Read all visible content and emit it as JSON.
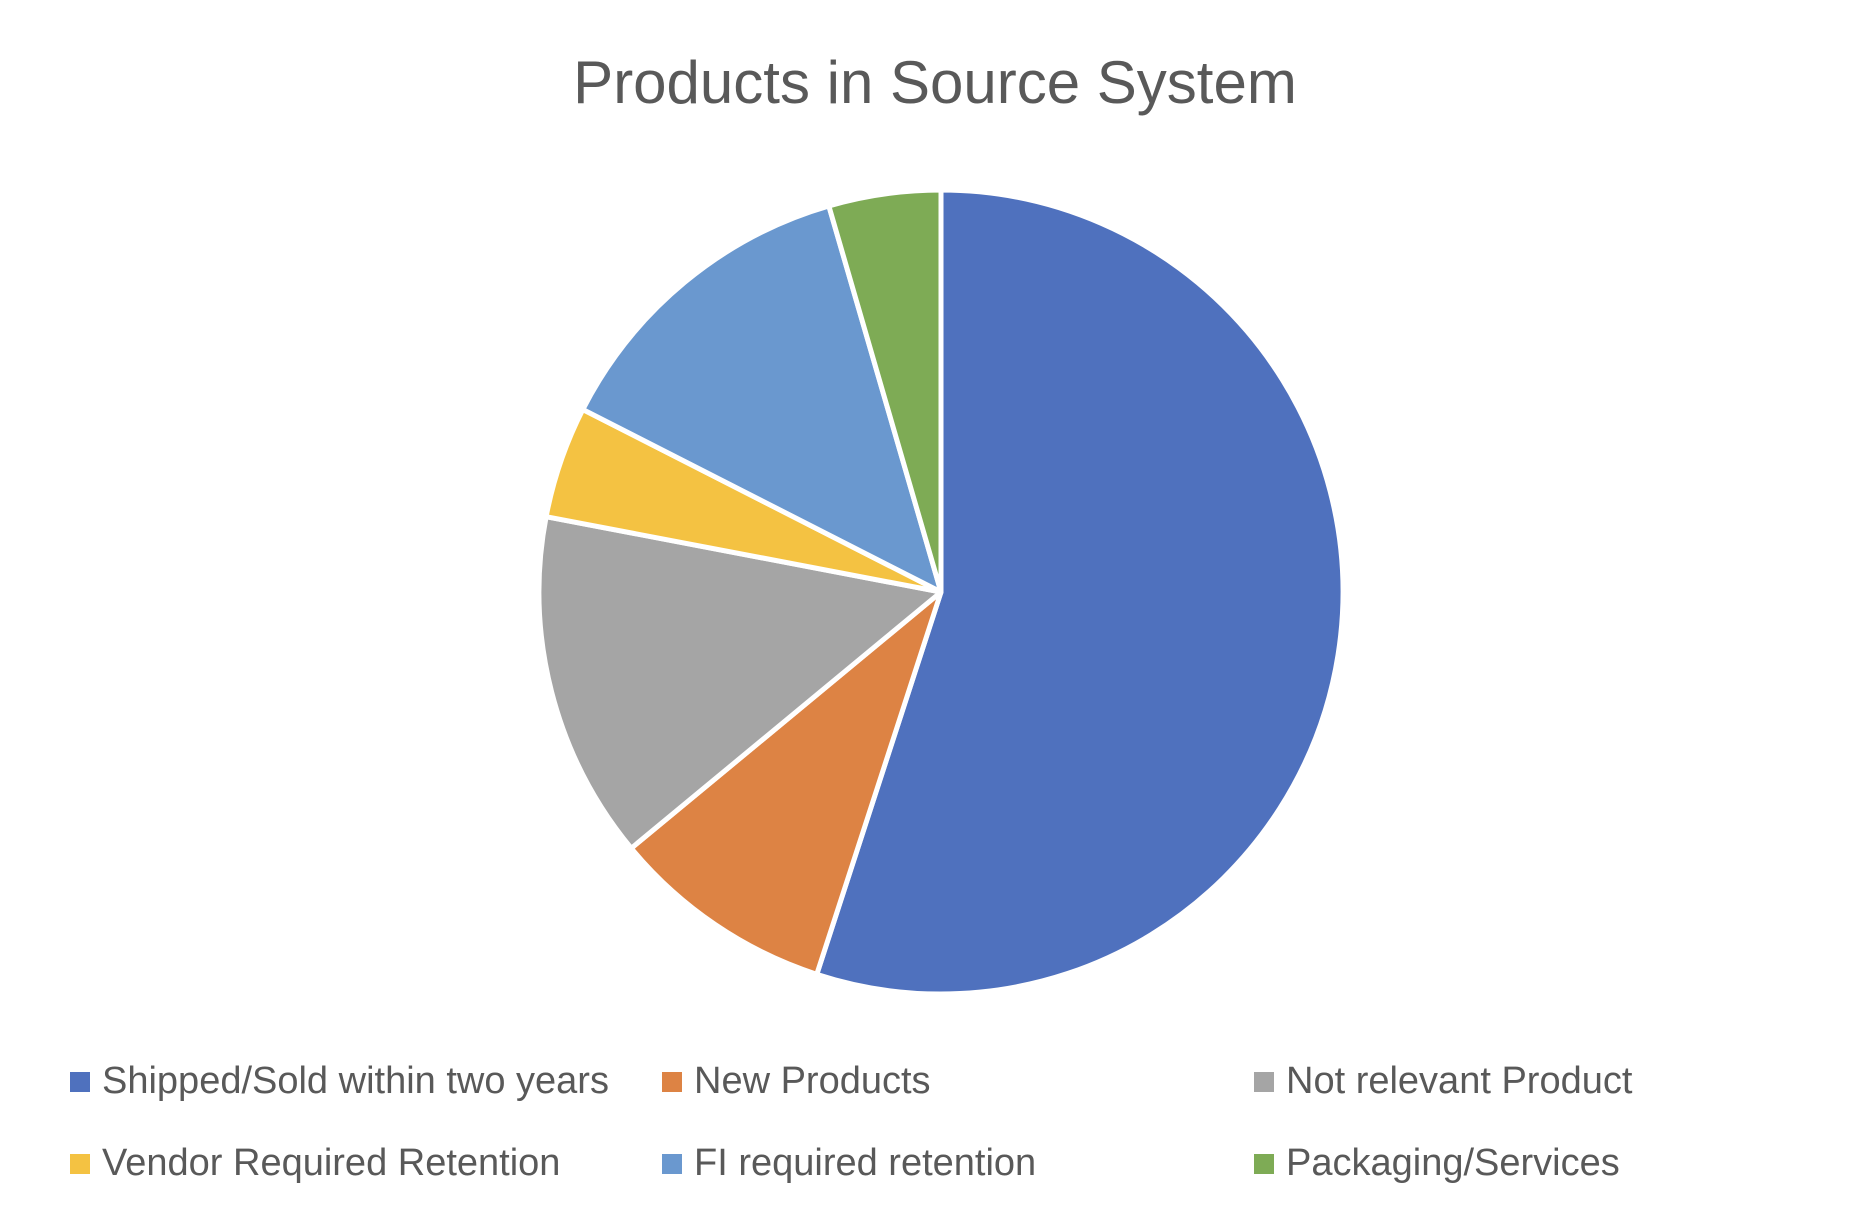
{
  "chart_data": {
    "type": "pie",
    "title": "Products in Source System",
    "categories": [
      "Shipped/Sold within two years",
      "New Products",
      "Not relevant Product",
      "Vendor Required Retention",
      "FI required retention",
      "Packaging/Services"
    ],
    "values": [
      55,
      9,
      14,
      4.5,
      13,
      4.5
    ],
    "colors": [
      "#4F71BE",
      "#DD8344",
      "#A5A5A5",
      "#F4C242",
      "#6A98CF",
      "#7EAB55"
    ],
    "legend_position": "bottom",
    "start_angle": "12 o'clock",
    "direction": "clockwise"
  }
}
